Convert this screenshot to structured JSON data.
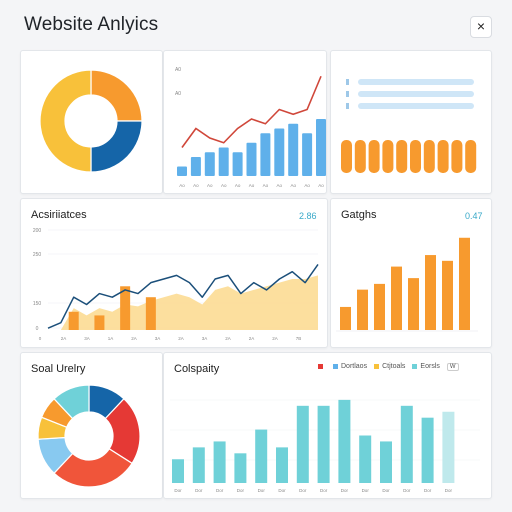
{
  "header": {
    "title": "Website Anlyics",
    "close_label": "×"
  },
  "colors": {
    "blue": "#5fb0ea",
    "darkblue": "#1565a8",
    "orange": "#f79a2e",
    "yellow": "#f8c13a",
    "red": "#e53935",
    "teal": "#6fd1d8",
    "lightblue": "#88c9f0",
    "line": "#d0473a",
    "navy": "#1b4f7a",
    "area": "#fbd98d"
  },
  "cards": {
    "acquisition": {
      "title": "Acsiriiatces",
      "value": "2.86"
    },
    "gadgets": {
      "title": "Gatghs",
      "value": "0.47"
    },
    "social": {
      "title": "Soal Urelry"
    },
    "capacity": {
      "title": "Colspaity",
      "legend": [
        "Dortlaos",
        "Ctjtoals",
        "Eorsls"
      ],
      "legend_tail": "W"
    }
  },
  "chart_data": [
    {
      "type": "pie",
      "values": [
        25,
        25,
        50
      ],
      "colors": [
        "#f79a2e",
        "#1565a8",
        "#f8c13a"
      ],
      "donut": true
    },
    {
      "type": "bar",
      "values": [
        1,
        2,
        2.5,
        3,
        2.5,
        3.5,
        4.5,
        5,
        5.5,
        4.5,
        6
      ],
      "line_values": [
        3,
        5,
        4,
        3.5,
        5,
        6,
        5.5,
        7,
        6.5,
        7,
        10.5
      ],
      "ylim": [
        0,
        12
      ],
      "tick_labels": [
        "A0",
        "A0"
      ],
      "x_labels": [
        "Ao",
        "Ao",
        "Ao",
        "Ao",
        "Ao",
        "Ao",
        "Ao",
        "Ao",
        "Ao",
        "Ao",
        "Ao"
      ]
    },
    {
      "type": "bar",
      "values": [
        5,
        5,
        5,
        5,
        5,
        5,
        5,
        5,
        5,
        5
      ]
    },
    {
      "type": "area",
      "x": [
        0,
        1,
        2,
        3,
        4,
        5,
        6,
        7,
        8,
        9,
        10,
        11,
        12,
        13,
        14,
        15,
        16,
        17,
        18,
        19,
        20,
        21
      ],
      "area_values": [
        0,
        0,
        6,
        4,
        6,
        5,
        7,
        6.5,
        8,
        9,
        10,
        9,
        7,
        11,
        12,
        10,
        11,
        12,
        13,
        14,
        14,
        15
      ],
      "line_values": [
        0.5,
        2,
        9,
        7,
        10,
        9,
        11,
        10,
        13,
        14,
        15,
        13,
        9,
        14,
        15,
        10,
        13,
        11,
        14,
        16,
        13,
        18
      ],
      "bars": [
        {
          "x": 2,
          "value": 5
        },
        {
          "x": 4,
          "value": 4
        },
        {
          "x": 6,
          "value": 12
        },
        {
          "x": 8,
          "value": 9
        }
      ],
      "ylim": [
        0,
        28
      ],
      "tick_labels": [
        "200",
        "250",
        "150",
        "0"
      ],
      "x_labels": [
        "0",
        "2A",
        "3A",
        "1A",
        "2A",
        "3A",
        "2A",
        "3A",
        "2A",
        "2A",
        "2A",
        "7B"
      ]
    },
    {
      "type": "bar",
      "values": [
        4,
        7,
        8,
        11,
        9,
        13,
        12,
        16
      ],
      "ylim": [
        0,
        17
      ]
    },
    {
      "type": "pie",
      "donut": true,
      "values": [
        12,
        22,
        28,
        12,
        7,
        7,
        12
      ],
      "colors": [
        "#1565a8",
        "#e53935",
        "#f0553a",
        "#88c9f0",
        "#f8c13a",
        "#f79a2e",
        "#6fd1d8"
      ]
    },
    {
      "type": "bar",
      "values": [
        4,
        6,
        7,
        5,
        9,
        6,
        13,
        13,
        14,
        8,
        7,
        13,
        11,
        12
      ],
      "last_faded": true,
      "ylim": [
        0,
        16
      ],
      "x_labels": [
        "Dor",
        "Dor",
        "Dor",
        "Dor",
        "Dor",
        "Dor",
        "Dor",
        "Dor",
        "Dor",
        "Dor",
        "Dor",
        "Dor",
        "Dor",
        "Dor"
      ]
    }
  ]
}
